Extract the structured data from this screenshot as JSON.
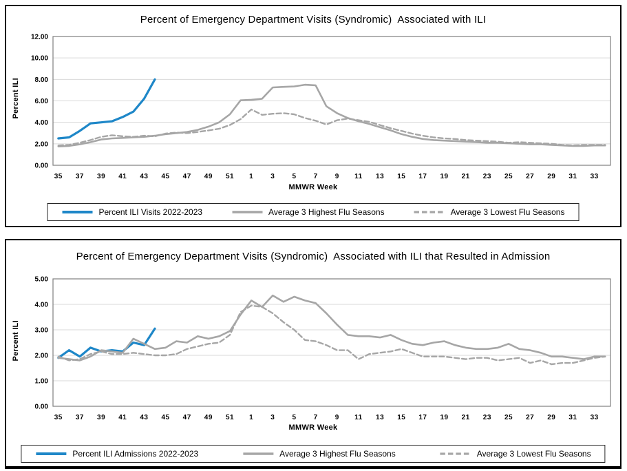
{
  "colors": {
    "series_blue": "#1e87c8",
    "series_gray": "#a6a6a6",
    "gridline": "#d9d9d9",
    "plot_border": "#7f7f7f",
    "text": "#000000"
  },
  "chart_data": [
    {
      "type": "line",
      "title": "Percent of Emergency Department Visits (Syndromic)  Associated with ILI",
      "xlabel": "MMWR Week",
      "ylabel": "Percent ILI",
      "ylim": [
        0,
        12
      ],
      "ytick_step": 2,
      "ytick_labels": [
        "0.00",
        "2.00",
        "4.00",
        "6.00",
        "8.00",
        "10.00",
        "12.00"
      ],
      "x_tick_labels": [
        "35",
        "37",
        "39",
        "41",
        "43",
        "45",
        "47",
        "49",
        "51",
        "1",
        "3",
        "5",
        "7",
        "9",
        "11",
        "13",
        "15",
        "17",
        "19",
        "21",
        "23",
        "25",
        "27",
        "29",
        "31",
        "33"
      ],
      "weeks": [
        35,
        36,
        37,
        38,
        39,
        40,
        41,
        42,
        43,
        44,
        45,
        46,
        47,
        48,
        49,
        50,
        51,
        52,
        1,
        2,
        3,
        4,
        5,
        6,
        7,
        8,
        9,
        10,
        11,
        12,
        13,
        14,
        15,
        16,
        17,
        18,
        19,
        20,
        21,
        22,
        23,
        24,
        25,
        26,
        27,
        28,
        29,
        30,
        31,
        32,
        33,
        34
      ],
      "grid": true,
      "legend_position": "bottom",
      "series": [
        {
          "name": "Percent ILI Visits 2022-2023",
          "color_key": "series_blue",
          "dash": false,
          "width": 3.2,
          "values": [
            2.5,
            2.6,
            3.2,
            3.9,
            4.0,
            4.1,
            4.5,
            5.0,
            6.2,
            8.0
          ]
        },
        {
          "name": "Average 3 Highest Flu Seasons",
          "color_key": "series_gray",
          "dash": false,
          "width": 2.6,
          "values": [
            1.75,
            1.8,
            1.95,
            2.15,
            2.4,
            2.5,
            2.55,
            2.6,
            2.65,
            2.75,
            2.9,
            3.0,
            3.1,
            3.3,
            3.6,
            4.0,
            4.75,
            6.05,
            6.1,
            6.2,
            7.25,
            7.3,
            7.35,
            7.5,
            7.45,
            5.5,
            4.85,
            4.4,
            4.1,
            3.85,
            3.55,
            3.25,
            2.9,
            2.65,
            2.45,
            2.35,
            2.3,
            2.25,
            2.2,
            2.15,
            2.1,
            2.1,
            2.05,
            2.0,
            1.95,
            1.95,
            1.9,
            1.85,
            1.8,
            1.8,
            1.85,
            1.85
          ]
        },
        {
          "name": "Average 3 Lowest Flu Seasons",
          "color_key": "series_gray",
          "dash": true,
          "width": 2.4,
          "values": [
            1.85,
            1.9,
            2.1,
            2.35,
            2.65,
            2.8,
            2.7,
            2.65,
            2.75,
            2.7,
            2.95,
            3.05,
            3.0,
            3.1,
            3.25,
            3.4,
            3.75,
            4.3,
            5.2,
            4.7,
            4.8,
            4.85,
            4.75,
            4.4,
            4.15,
            3.8,
            4.2,
            4.35,
            4.2,
            4.05,
            3.75,
            3.45,
            3.2,
            2.95,
            2.75,
            2.6,
            2.5,
            2.45,
            2.35,
            2.3,
            2.25,
            2.2,
            2.1,
            2.15,
            2.1,
            2.05,
            2.0,
            1.9,
            1.85,
            1.9,
            1.9,
            1.9
          ]
        }
      ]
    },
    {
      "type": "line",
      "title": "Percent of Emergency Department Visits (Syndromic)  Associated with ILI that Resulted in Admission",
      "xlabel": "MMWR Week",
      "ylabel": "Percent ILI",
      "ylim": [
        0,
        5
      ],
      "ytick_step": 1,
      "ytick_labels": [
        "0.00",
        "1.00",
        "2.00",
        "3.00",
        "4.00",
        "5.00"
      ],
      "x_tick_labels": [
        "35",
        "37",
        "39",
        "41",
        "43",
        "45",
        "47",
        "49",
        "51",
        "1",
        "3",
        "5",
        "7",
        "9",
        "11",
        "13",
        "15",
        "17",
        "19",
        "21",
        "23",
        "25",
        "27",
        "29",
        "31",
        "33"
      ],
      "weeks": [
        35,
        36,
        37,
        38,
        39,
        40,
        41,
        42,
        43,
        44,
        45,
        46,
        47,
        48,
        49,
        50,
        51,
        52,
        1,
        2,
        3,
        4,
        5,
        6,
        7,
        8,
        9,
        10,
        11,
        12,
        13,
        14,
        15,
        16,
        17,
        18,
        19,
        20,
        21,
        22,
        23,
        24,
        25,
        26,
        27,
        28,
        29,
        30,
        31,
        32,
        33,
        34
      ],
      "grid": true,
      "legend_position": "bottom",
      "series": [
        {
          "name": "Percent ILI Admissions 2022-2023",
          "color_key": "series_blue",
          "dash": false,
          "width": 3.2,
          "values": [
            1.9,
            2.2,
            1.95,
            2.3,
            2.15,
            2.2,
            2.15,
            2.5,
            2.4,
            3.05
          ]
        },
        {
          "name": "Average 3 Highest Flu Seasons",
          "color_key": "series_gray",
          "dash": false,
          "width": 2.6,
          "values": [
            1.9,
            1.85,
            1.8,
            1.95,
            2.2,
            2.15,
            2.1,
            2.65,
            2.45,
            2.25,
            2.3,
            2.55,
            2.5,
            2.75,
            2.65,
            2.75,
            2.95,
            3.6,
            4.15,
            3.9,
            4.35,
            4.1,
            4.3,
            4.15,
            4.05,
            3.65,
            3.2,
            2.8,
            2.75,
            2.75,
            2.7,
            2.8,
            2.6,
            2.45,
            2.4,
            2.5,
            2.55,
            2.4,
            2.3,
            2.25,
            2.25,
            2.3,
            2.45,
            2.25,
            2.2,
            2.1,
            1.95,
            1.95,
            1.9,
            1.85,
            1.95,
            1.95
          ]
        },
        {
          "name": "Average 3 Lowest Flu Seasons",
          "color_key": "series_gray",
          "dash": true,
          "width": 2.4,
          "values": [
            1.95,
            1.8,
            1.85,
            2.05,
            2.15,
            2.05,
            2.05,
            2.1,
            2.05,
            2.0,
            2.0,
            2.05,
            2.25,
            2.35,
            2.45,
            2.5,
            2.8,
            3.7,
            3.95,
            3.9,
            3.65,
            3.3,
            3.0,
            2.6,
            2.55,
            2.4,
            2.2,
            2.2,
            1.85,
            2.05,
            2.1,
            2.15,
            2.25,
            2.1,
            1.95,
            1.95,
            1.95,
            1.9,
            1.85,
            1.9,
            1.9,
            1.8,
            1.85,
            1.9,
            1.7,
            1.8,
            1.65,
            1.7,
            1.7,
            1.8,
            1.9,
            1.95
          ]
        }
      ]
    }
  ]
}
